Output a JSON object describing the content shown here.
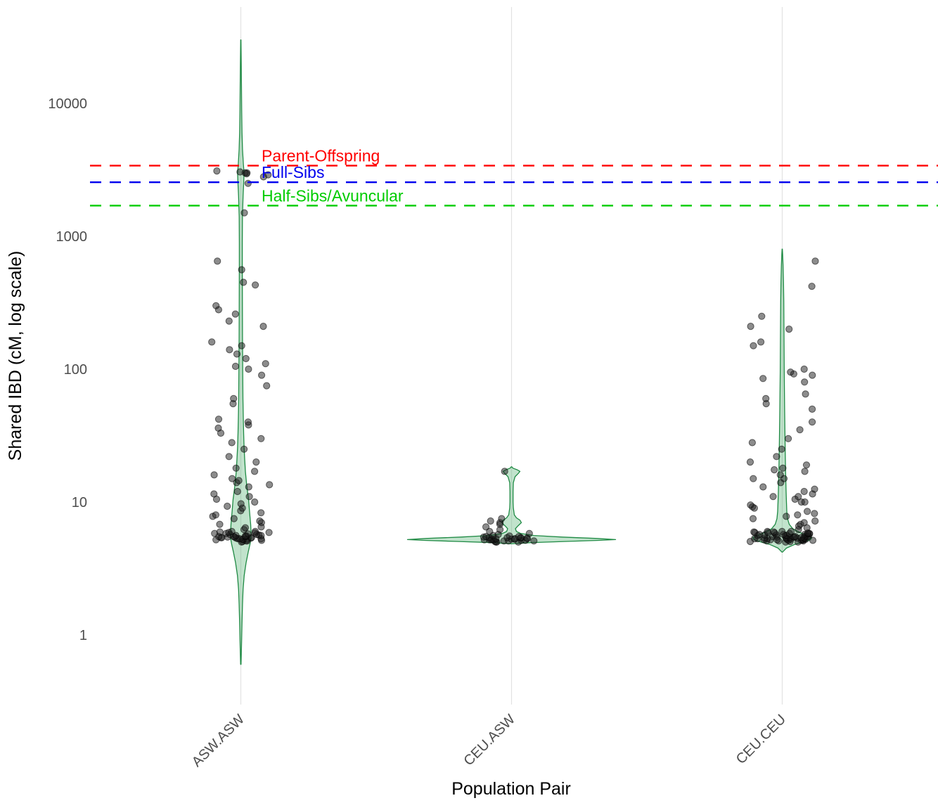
{
  "chart_data": {
    "type": "violin",
    "overlay": "jittered scatter points",
    "title": "",
    "xlabel": "Population Pair",
    "ylabel": "Shared IBD (cM, log scale)",
    "y_scale": "log10",
    "ylim": [
      0.5,
      40000
    ],
    "y_ticks": [
      1,
      10,
      100,
      1000,
      10000
    ],
    "y_tick_labels": [
      "1",
      "10",
      "100",
      "1000",
      "10000"
    ],
    "categories": [
      "ASW.ASW",
      "CEU.ASW",
      "CEU.CEU"
    ],
    "grid": "vertical major gridlines only",
    "legend": "none",
    "ref_lines": [
      {
        "label": "Parent-Offspring",
        "value": 3400,
        "color": "#FF0000",
        "style": "dashed"
      },
      {
        "label": "Full-Sibs",
        "value": 2550,
        "color": "#0000EE",
        "style": "dashed"
      },
      {
        "label": "Half-Sibs/Avuncular",
        "value": 1700,
        "color": "#00CC00",
        "style": "dashed"
      }
    ],
    "style": {
      "violin_stroke": "#1F8A44",
      "violin_fill": "#4CAF6E",
      "violin_fill_opacity": 0.35,
      "point_color": "#1A1A1A",
      "point_opacity": 0.5,
      "grid_color": "#E2E2E2",
      "axis_text_color": "#4D4D4D",
      "title_color": "#000000"
    },
    "series": [
      {
        "name": "ASW.ASW",
        "jitter_width": 42,
        "seed": 11,
        "points": [
          5.0,
          5.05,
          5.1,
          5.1,
          5.15,
          5.2,
          5.2,
          5.25,
          5.25,
          5.3,
          5.3,
          5.3,
          5.35,
          5.35,
          5.4,
          5.4,
          5.4,
          5.45,
          5.45,
          5.5,
          5.5,
          5.5,
          5.55,
          5.55,
          5.6,
          5.6,
          5.65,
          5.7,
          5.7,
          5.75,
          5.8,
          5.8,
          5.85,
          5.9,
          5.9,
          5.95,
          6.0,
          6.0,
          6.2,
          6.4,
          6.5,
          6.8,
          7.0,
          7.2,
          7.5,
          7.8,
          8.0,
          8.3,
          8.6,
          9.0,
          9.3,
          9.7,
          10,
          10.5,
          11,
          11.5,
          12,
          13,
          13.5,
          14,
          14.5,
          15,
          16,
          17,
          18,
          20,
          22,
          25,
          28,
          30,
          33,
          36,
          38,
          40,
          42,
          55,
          60,
          75,
          90,
          100,
          105,
          110,
          120,
          130,
          140,
          150,
          160,
          210,
          230,
          260,
          280,
          300,
          430,
          450,
          560,
          650,
          1500,
          2500,
          2800,
          2900,
          2950,
          3000,
          3000,
          3050,
          3100
        ],
        "violin_profile": [
          [
            0.6,
            0.3
          ],
          [
            0.8,
            0.9
          ],
          [
            1.0,
            1.3
          ],
          [
            1.3,
            1.8
          ],
          [
            1.7,
            2.4
          ],
          [
            2.2,
            3.2
          ],
          [
            2.8,
            4.8
          ],
          [
            3.5,
            7.5
          ],
          [
            4.2,
            10.5
          ],
          [
            4.8,
            13
          ],
          [
            5.3,
            14.5
          ],
          [
            6.0,
            14.5
          ],
          [
            6.8,
            14
          ],
          [
            7.8,
            13
          ],
          [
            9,
            12
          ],
          [
            10.5,
            11
          ],
          [
            12,
            9.5
          ],
          [
            14,
            8
          ],
          [
            17,
            6.5
          ],
          [
            21,
            5.5
          ],
          [
            26,
            4.6
          ],
          [
            33,
            4
          ],
          [
            43,
            3.5
          ],
          [
            60,
            3
          ],
          [
            85,
            2.8
          ],
          [
            120,
            2.6
          ],
          [
            170,
            2.4
          ],
          [
            250,
            2.3
          ],
          [
            400,
            2.2
          ],
          [
            600,
            2.1
          ],
          [
            900,
            2.1
          ],
          [
            1400,
            2.3
          ],
          [
            2000,
            3.2
          ],
          [
            2600,
            4.2
          ],
          [
            3000,
            4.6
          ],
          [
            3500,
            3.6
          ],
          [
            4500,
            2.4
          ],
          [
            6000,
            1.7
          ],
          [
            9000,
            1.2
          ],
          [
            14000,
            0.9
          ],
          [
            20000,
            0.6
          ],
          [
            30000,
            0.2
          ]
        ]
      },
      {
        "name": "CEU.ASW",
        "jitter_width": 40,
        "seed": 22,
        "points": [
          5.0,
          5.0,
          5.0,
          5.05,
          5.1,
          5.1,
          5.1,
          5.15,
          5.15,
          5.2,
          5.2,
          5.2,
          5.2,
          5.25,
          5.25,
          5.25,
          5.3,
          5.3,
          5.3,
          5.35,
          5.35,
          5.4,
          5.4,
          5.4,
          5.45,
          5.5,
          5.5,
          5.55,
          5.6,
          5.7,
          5.8,
          6.0,
          6.2,
          6.5,
          6.8,
          7.0,
          7.2,
          7.5,
          17
        ],
        "violin_profile": [
          [
            4.85,
            0.5
          ],
          [
            4.95,
            28
          ],
          [
            5.05,
            75
          ],
          [
            5.15,
            125
          ],
          [
            5.22,
            148
          ],
          [
            5.32,
            122
          ],
          [
            5.45,
            72
          ],
          [
            5.6,
            32
          ],
          [
            5.8,
            13
          ],
          [
            6.0,
            7
          ],
          [
            6.3,
            5.5
          ],
          [
            6.6,
            9
          ],
          [
            7.0,
            14
          ],
          [
            7.3,
            12
          ],
          [
            7.6,
            7
          ],
          [
            8.0,
            4
          ],
          [
            9.0,
            2.6
          ],
          [
            10,
            2.2
          ],
          [
            12,
            2.2
          ],
          [
            14,
            2.6
          ],
          [
            15.5,
            5
          ],
          [
            16.5,
            10
          ],
          [
            17,
            12
          ],
          [
            17.5,
            8
          ],
          [
            18,
            2
          ],
          [
            18.4,
            0.4
          ]
        ]
      },
      {
        "name": "CEU.CEU",
        "jitter_width": 47,
        "seed": 33,
        "points": [
          5.0,
          5.0,
          5.05,
          5.05,
          5.1,
          5.1,
          5.1,
          5.15,
          5.15,
          5.15,
          5.2,
          5.2,
          5.2,
          5.2,
          5.25,
          5.25,
          5.25,
          5.3,
          5.3,
          5.3,
          5.3,
          5.35,
          5.35,
          5.35,
          5.4,
          5.4,
          5.4,
          5.45,
          5.45,
          5.45,
          5.5,
          5.5,
          5.5,
          5.55,
          5.55,
          5.6,
          5.6,
          5.6,
          5.65,
          5.65,
          5.7,
          5.7,
          5.7,
          5.75,
          5.75,
          5.8,
          5.8,
          5.85,
          5.85,
          5.9,
          5.9,
          5.95,
          5.95,
          6.0,
          6.0,
          6.0,
          5.2,
          5.4,
          6.2,
          6.4,
          6.6,
          6.8,
          7.0,
          7.2,
          7.5,
          7.8,
          8.0,
          8.2,
          8.5,
          9.0,
          9.2,
          9.5,
          10,
          10,
          10.5,
          11,
          11,
          11.5,
          12,
          12.5,
          13,
          14,
          15,
          15,
          16,
          17,
          17.5,
          18,
          19,
          20,
          22,
          25,
          28,
          30,
          35,
          40,
          50,
          55,
          60,
          65,
          80,
          85,
          90,
          92,
          95,
          100,
          150,
          160,
          200,
          210,
          250,
          420,
          650
        ],
        "violin_profile": [
          [
            4.2,
            0.4
          ],
          [
            4.5,
            6
          ],
          [
            4.8,
            18
          ],
          [
            5.0,
            30
          ],
          [
            5.2,
            40
          ],
          [
            5.4,
            42
          ],
          [
            5.6,
            36
          ],
          [
            5.9,
            25
          ],
          [
            6.3,
            15
          ],
          [
            6.8,
            10
          ],
          [
            7.5,
            7.5
          ],
          [
            8.5,
            6.5
          ],
          [
            10,
            6
          ],
          [
            12,
            5.5
          ],
          [
            15,
            5
          ],
          [
            19,
            4.6
          ],
          [
            25,
            4.2
          ],
          [
            35,
            3.8
          ],
          [
            50,
            3.4
          ],
          [
            70,
            3.1
          ],
          [
            100,
            2.8
          ],
          [
            150,
            2.6
          ],
          [
            220,
            2.4
          ],
          [
            320,
            2.2
          ],
          [
            450,
            1.8
          ],
          [
            600,
            1.2
          ],
          [
            730,
            0.6
          ],
          [
            800,
            0.2
          ]
        ]
      }
    ]
  }
}
